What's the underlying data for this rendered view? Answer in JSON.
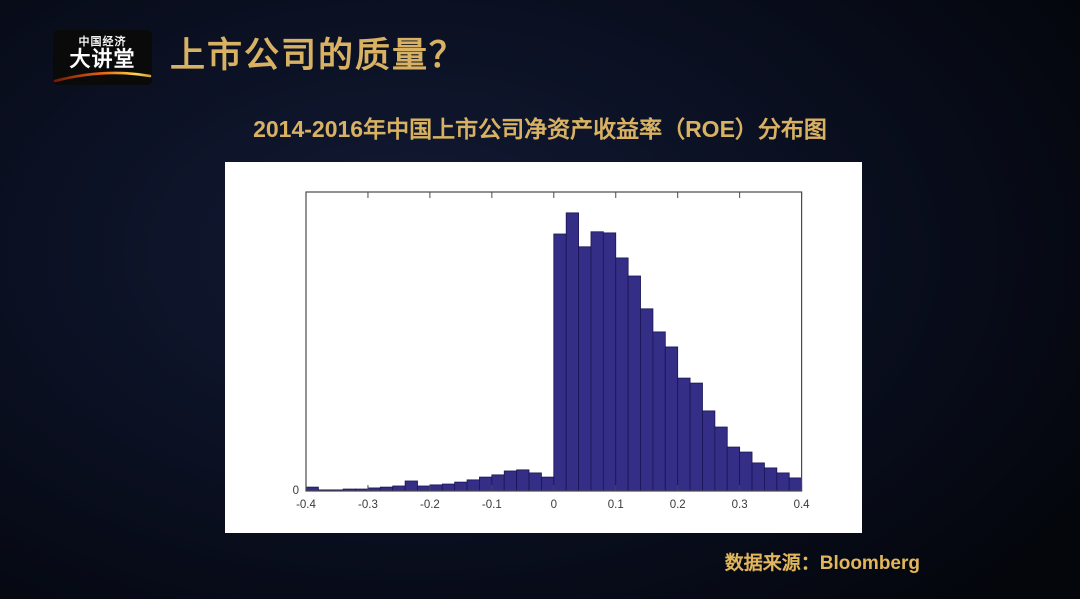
{
  "slide": {
    "logo": {
      "line1": "中国经济",
      "line2": "大讲堂"
    },
    "title": "上市公司的质量？",
    "subtitle": "2014-2016年中国上市公司净资产收益率（ROE）分布图",
    "source": "数据来源：Bloomberg",
    "colors": {
      "accent_gold": "#d8b262",
      "bar_fill": "#342e86",
      "bar_edge": "#1a1555",
      "panel_bg": "#ffffff",
      "axis": "#4a4a4a",
      "tick_label": "#3a3a3a"
    }
  },
  "chart_data": {
    "type": "bar",
    "subtype": "histogram",
    "title": "2014-2016年中国上市公司净资产收益率（ROE）分布图",
    "xlabel": "",
    "ylabel": "",
    "xlim": [
      -0.4,
      0.4
    ],
    "ylim": [
      0,
      1.075
    ],
    "x_tick_labels": [
      "-0.4",
      "-0.3",
      "-0.2",
      "-0.1",
      "0",
      "0.1",
      "0.2",
      "0.3",
      "0.4"
    ],
    "x_tick_values": [
      -0.4,
      -0.3,
      -0.2,
      -0.1,
      0,
      0.1,
      0.2,
      0.3,
      0.4
    ],
    "y_tick_labels": [
      "0"
    ],
    "grid": false,
    "legend": false,
    "bin_width": 0.02,
    "bin_starts": [
      -0.4,
      -0.38,
      -0.36,
      -0.34,
      -0.32,
      -0.3,
      -0.28,
      -0.26,
      -0.24,
      -0.22,
      -0.2,
      -0.18,
      -0.16,
      -0.14,
      -0.12,
      -0.1,
      -0.08,
      -0.06,
      -0.04,
      -0.02,
      0.0,
      0.02,
      0.04,
      0.06,
      0.08,
      0.1,
      0.12,
      0.14,
      0.16,
      0.18,
      0.2,
      0.22,
      0.24,
      0.26,
      0.28,
      0.3,
      0.32,
      0.34,
      0.36,
      0.38
    ],
    "heights_peak_normalized": [
      0.014,
      0.004,
      0.004,
      0.007,
      0.007,
      0.011,
      0.014,
      0.018,
      0.036,
      0.018,
      0.022,
      0.025,
      0.032,
      0.04,
      0.05,
      0.058,
      0.072,
      0.076,
      0.065,
      0.05,
      0.924,
      1.0,
      0.878,
      0.932,
      0.928,
      0.838,
      0.773,
      0.655,
      0.572,
      0.518,
      0.406,
      0.388,
      0.288,
      0.23,
      0.158,
      0.14,
      0.101,
      0.083,
      0.065,
      0.047
    ]
  }
}
